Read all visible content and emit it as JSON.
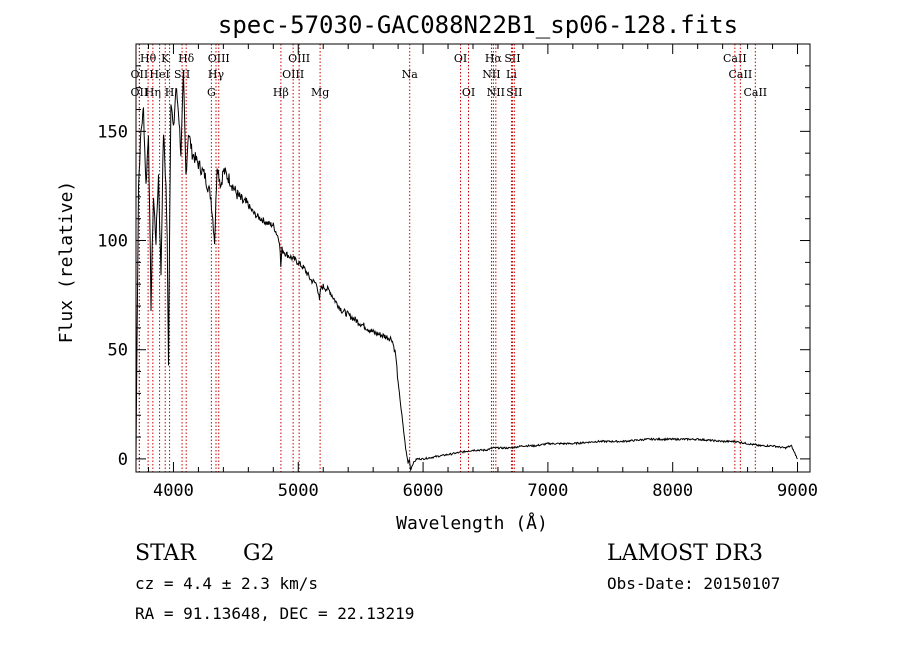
{
  "chart_data": {
    "type": "line",
    "title": "spec-57030-GAC088N22B1_sp06-128.fits",
    "xlabel": "Wavelength (Å)",
    "ylabel": "Flux (relative)",
    "xlim": [
      3700,
      9100
    ],
    "ylim": [
      -6,
      190
    ],
    "xticks": [
      4000,
      5000,
      6000,
      7000,
      8000,
      9000
    ],
    "yticks": [
      0,
      50,
      100,
      150
    ],
    "grid": false,
    "series": [
      {
        "x": [
          3700,
          3710,
          3720,
          3740,
          3760,
          3780,
          3800,
          3820,
          3840,
          3860,
          3880,
          3900,
          3920,
          3940,
          3950,
          3960,
          3970,
          3980,
          4000,
          4020,
          4040,
          4060,
          4080,
          4100,
          4120,
          4150,
          4200,
          4250,
          4300,
          4330,
          4350,
          4380,
          4400,
          4450,
          4500,
          4550,
          4600,
          4650,
          4700,
          4750,
          4800,
          4850,
          4860,
          4870,
          4900,
          4950,
          5000,
          5050,
          5100,
          5150,
          5170,
          5180,
          5200,
          5250,
          5300,
          5350,
          5400,
          5450,
          5500,
          5550,
          5600,
          5650,
          5700,
          5750,
          5780,
          5800,
          5820,
          5840,
          5860,
          5880,
          5890,
          5900,
          5920,
          5950,
          6000,
          6100,
          6200,
          6300,
          6400,
          6500,
          6560,
          6600,
          6700,
          6800,
          6900,
          7000,
          7200,
          7400,
          7600,
          7800,
          8000,
          8200,
          8400,
          8500,
          8600,
          8700,
          8800,
          8900,
          8950,
          9000
        ],
        "values": [
          0,
          65,
          125,
          150,
          160,
          125,
          150,
          70,
          120,
          100,
          130,
          85,
          150,
          125,
          100,
          45,
          110,
          165,
          150,
          170,
          160,
          140,
          175,
          130,
          150,
          140,
          135,
          130,
          120,
          100,
          135,
          125,
          132,
          128,
          122,
          118,
          116,
          112,
          110,
          108,
          107,
          100,
          88,
          96,
          94,
          92,
          90,
          87,
          82,
          80,
          72,
          78,
          79,
          77,
          72,
          68,
          66,
          64,
          62,
          60,
          58,
          57,
          56,
          55,
          48,
          35,
          25,
          15,
          5,
          -2,
          0,
          -5,
          -2,
          0,
          0,
          1,
          2,
          3,
          4,
          4,
          5,
          5,
          5,
          6,
          6,
          7,
          7,
          8,
          8,
          9,
          9,
          9,
          8,
          8,
          7,
          6,
          6,
          5,
          6,
          0
        ]
      }
    ],
    "spectral_lines": [
      {
        "name": "Hθ",
        "x": 3797,
        "row": 1
      },
      {
        "name": "OII",
        "x": 3727,
        "row": 2
      },
      {
        "name": "OII",
        "x": 3727,
        "row": 3
      },
      {
        "name": "Hη",
        "x": 3835,
        "row": 3
      },
      {
        "name": "HeI",
        "x": 3889,
        "row": 2
      },
      {
        "name": "K",
        "x": 3934,
        "row": 1
      },
      {
        "name": "H",
        "x": 3969,
        "row": 3
      },
      {
        "name": "SII",
        "x": 4069,
        "row": 2
      },
      {
        "name": "Hδ",
        "x": 4102,
        "row": 1
      },
      {
        "name": "OIII",
        "x": 4363,
        "row": 1
      },
      {
        "name": "Hγ",
        "x": 4341,
        "row": 2
      },
      {
        "name": "G",
        "x": 4304,
        "row": 3
      },
      {
        "name": "OIII",
        "x": 5007,
        "row": 1
      },
      {
        "name": "OIII",
        "x": 4959,
        "row": 2
      },
      {
        "name": "Hβ",
        "x": 4861,
        "row": 3
      },
      {
        "name": "Mg",
        "x": 5175,
        "row": 3
      },
      {
        "name": "Na",
        "x": 5893,
        "row": 2
      },
      {
        "name": "OI",
        "x": 6300,
        "row": 1
      },
      {
        "name": "OI",
        "x": 6364,
        "row": 3
      },
      {
        "name": "Hα",
        "x": 6563,
        "row": 1
      },
      {
        "name": "NII",
        "x": 6548,
        "row": 2
      },
      {
        "name": "NII",
        "x": 6583,
        "row": 3
      },
      {
        "name": "SII",
        "x": 6716,
        "row": 1
      },
      {
        "name": "Li",
        "x": 6708,
        "row": 2
      },
      {
        "name": "SII",
        "x": 6731,
        "row": 3
      },
      {
        "name": "CaII",
        "x": 8498,
        "row": 1
      },
      {
        "name": "CaII",
        "x": 8542,
        "row": 2
      },
      {
        "name": "CaII",
        "x": 8662,
        "row": 3
      }
    ]
  },
  "info": {
    "object_class": "STAR",
    "subclass": "G2",
    "survey": "LAMOST DR3",
    "cz": "cz = 4.4 ± 2.3 km/s",
    "obs_date": "Obs-Date: 20150107",
    "coords": "RA =  91.13648, DEC =  22.13219"
  },
  "colors": {
    "spectrum": "#000000",
    "line_markers": "#cc0000"
  }
}
